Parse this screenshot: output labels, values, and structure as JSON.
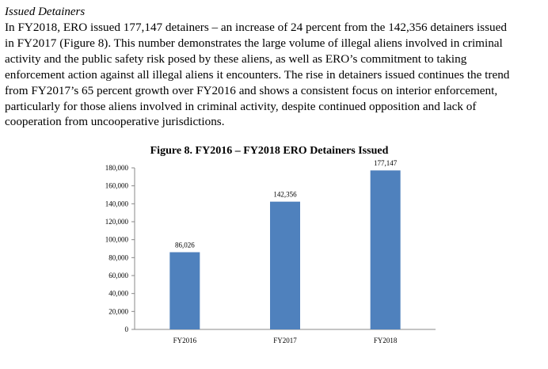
{
  "section_heading": "Issued Detainers",
  "paragraph": {
    "lines": [
      "In FY2018, ERO issued 177,147 detainers – an increase of 24 percent from the 142,356 detainers issued",
      "in FY2017 (Figure 8). This number demonstrates the large volume of illegal aliens involved in criminal",
      "activity and the public safety risk posed by these aliens, as well as ERO’s commitment to taking",
      "enforcement action against all illegal aliens it encounters. The rise in detainers issued continues the trend",
      "from FY2017’s 65 percent growth over FY2016 and shows a consistent focus on interior enforcement,",
      "particularly for those aliens involved in criminal activity, despite continued opposition and lack of",
      "cooperation from uncooperative jurisdictions."
    ]
  },
  "figure": {
    "title": "Figure 8. FY2016 – FY2018 ERO Detainers Issued"
  },
  "chart_data": {
    "type": "bar",
    "title": "Figure 8. FY2016 – FY2018 ERO Detainers Issued",
    "categories": [
      "FY2016",
      "FY2017",
      "FY2018"
    ],
    "values": [
      86026,
      142356,
      177147
    ],
    "value_labels": [
      "86,026",
      "142,356",
      "177,147"
    ],
    "xlabel": "",
    "ylabel": "",
    "ylim": [
      0,
      180000
    ],
    "yticks": [
      0,
      20000,
      40000,
      60000,
      80000,
      100000,
      120000,
      140000,
      160000,
      180000
    ],
    "ytick_labels": [
      "0",
      "20,000",
      "40,000",
      "60,000",
      "80,000",
      "100,000",
      "120,000",
      "140,000",
      "160,000",
      "180,000"
    ],
    "grid": false,
    "legend": "none",
    "bar_color": "#4F81BD"
  }
}
